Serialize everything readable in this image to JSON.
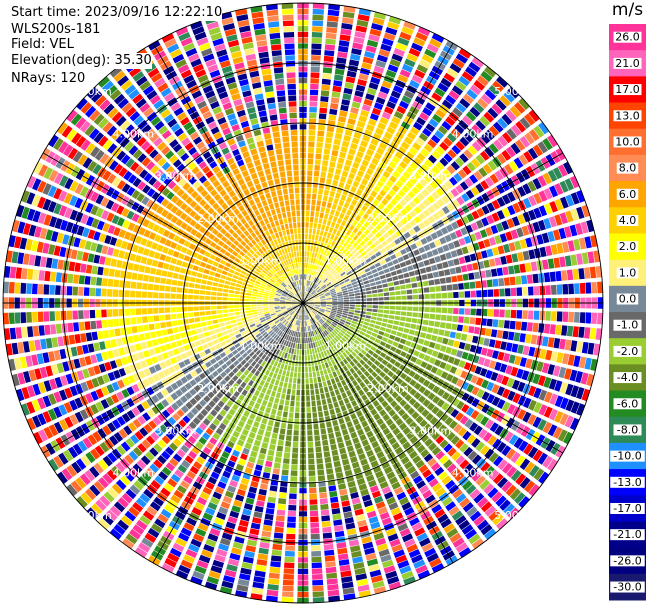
{
  "header": {
    "start_time": "Start time: 2023/09/16 12:22:10",
    "instrument": "WLS200s-181",
    "field": "Field: VEL",
    "elevation": "Elevation(deg): 35.30",
    "nrays": "NRays: 120"
  },
  "colorbar": {
    "unit": "m/s",
    "colors": [
      "#ff3399",
      "#ff66bb",
      "#ff0000",
      "#ff4400",
      "#ff6f2f",
      "#ff8c55",
      "#ffa500",
      "#ffd000",
      "#ffff00",
      "#fff07a",
      "#778899",
      "#696969",
      "#9acd32",
      "#6b8e23",
      "#228b22",
      "#2e8b57",
      "#1e90ff",
      "#0000ff",
      "#0000cd",
      "#00008b",
      "#000080",
      "#191970"
    ],
    "tick_labels": [
      "26.0",
      "21.0",
      "17.0",
      "13.0",
      "10.0",
      "8.0",
      "6.0",
      "4.0",
      "2.0",
      "1.0",
      "0.0",
      "-1.0",
      "-2.0",
      "-4.0",
      "-6.0",
      "-8.0",
      "-10.0",
      "-13.0",
      "-17.0",
      "-21.0",
      "-26.0",
      "-30.0"
    ]
  },
  "chart_data": {
    "type": "heatmap",
    "subtype": "ppi-polar",
    "field": "VEL",
    "units": "m/s",
    "elevation_deg": 35.3,
    "nrays": 120,
    "value_range": [
      -30,
      26
    ],
    "range_ring_labels": [
      "1.00km",
      "2.00km",
      "3.00km",
      "4.00km",
      "5.00km"
    ],
    "range_rings_km": [
      1,
      2,
      3,
      4,
      5
    ],
    "spokes_deg": [
      0,
      30,
      60,
      90,
      120,
      150,
      180,
      210,
      240,
      270,
      300,
      330
    ],
    "velocity_pattern": {
      "near_range_km": 3.0,
      "north_west_sector": "positive (1 to 6 m/s, yellow/orange)",
      "south_east_sector": "negative (-1 to -6 m/s, green)",
      "center": "near zero (grey)",
      "far_range": "noise across full scale"
    }
  }
}
